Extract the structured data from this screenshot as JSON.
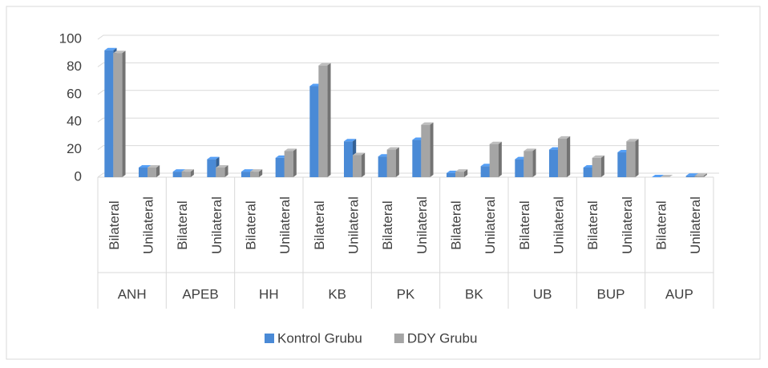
{
  "chart_data": {
    "type": "bar",
    "groups": [
      "ANH",
      "APEB",
      "HH",
      "KB",
      "PK",
      "BK",
      "UB",
      "BUP",
      "AUP"
    ],
    "categories": [
      "Bilateral",
      "Unilateral",
      "Bilateral",
      "Unilateral",
      "Bilateral",
      "Unilateral",
      "Bilateral",
      "Unilateral",
      "Bilateral",
      "Unilateral",
      "Bilateral",
      "Unilateral",
      "Bilateral",
      "Unilateral",
      "Bilateral",
      "Unilateral",
      "Bilateral",
      "Unilateral"
    ],
    "series": [
      {
        "name": "Kontrol Grubu",
        "color": "#4a8ad6",
        "values": [
          92,
          7,
          4,
          13,
          4,
          14,
          66,
          26,
          15,
          27,
          3,
          8,
          13,
          20,
          7,
          18,
          0,
          1
        ]
      },
      {
        "name": "DDY Grubu",
        "color": "#a5a5a5",
        "values": [
          90,
          7,
          4,
          7,
          4,
          19,
          81,
          16,
          20,
          38,
          4,
          24,
          19,
          28,
          14,
          26,
          0,
          1
        ]
      }
    ],
    "ylim": [
      0,
      100
    ],
    "yticks": [
      0,
      20,
      40,
      60,
      80,
      100
    ],
    "grid": true,
    "legend": "bottom"
  }
}
